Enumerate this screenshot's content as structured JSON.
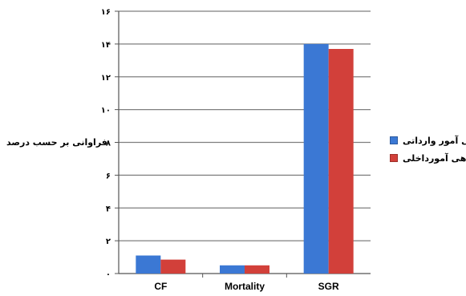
{
  "chart_data": {
    "type": "bar",
    "categories": [
      "CF",
      "Mortality",
      "SGR"
    ],
    "series": [
      {
        "name": "ماهی آمور وارداتی",
        "values": [
          1.1,
          0.5,
          14.0
        ]
      },
      {
        "name": "ماهی آمورداخلی",
        "values": [
          0.85,
          0.5,
          13.7
        ]
      }
    ],
    "colors": [
      "#3b78d4",
      "#d2403a"
    ],
    "ylim": [
      0,
      16
    ],
    "yticks": [
      "۰",
      "۲",
      "۴",
      "۶",
      "۸",
      "۱۰",
      "۱۲",
      "۱۴",
      "۱۶"
    ],
    "ylabel": "فراوانی بر حسب درصد",
    "xlabel": "",
    "grid": true,
    "legend_position": "right"
  }
}
